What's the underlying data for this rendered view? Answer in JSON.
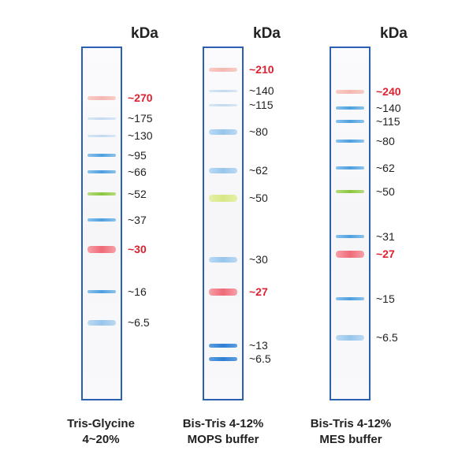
{
  "unit_label": "kDa",
  "colors": {
    "lane_border": "#2b5fb0",
    "red_marker": "#e0202e",
    "blue_band": "#4ca0e0",
    "green_band": "#8cc63f",
    "faint_band": "#c9dcf2"
  },
  "ladders": [
    {
      "caption_line1": "Tris-Glycine",
      "caption_line2": "4~20%",
      "markers": [
        {
          "text": "~270",
          "color": "red",
          "band": "faint_red"
        },
        {
          "text": "~175",
          "color": "normal",
          "band": "faint"
        },
        {
          "text": "~130",
          "color": "normal",
          "band": "faint"
        },
        {
          "text": "~95",
          "color": "normal",
          "band": "blue"
        },
        {
          "text": "~66",
          "color": "normal",
          "band": "blue"
        },
        {
          "text": "~52",
          "color": "normal",
          "band": "green"
        },
        {
          "text": "~37",
          "color": "normal",
          "band": "blue"
        },
        {
          "text": "~30",
          "color": "red",
          "band": "red"
        },
        {
          "text": "~16",
          "color": "normal",
          "band": "blue"
        },
        {
          "text": "~6.5",
          "color": "normal",
          "band": "blue_light"
        }
      ]
    },
    {
      "caption_line1": "Bis-Tris 4-12%",
      "caption_line2": "MOPS buffer",
      "markers": [
        {
          "text": "~210",
          "color": "red",
          "band": "faint_red"
        },
        {
          "text": "~140",
          "color": "normal",
          "band": "faint"
        },
        {
          "text": "~115",
          "color": "normal",
          "band": "faint"
        },
        {
          "text": "~80",
          "color": "normal",
          "band": "blue_light"
        },
        {
          "text": "~62",
          "color": "normal",
          "band": "blue_light"
        },
        {
          "text": "~50",
          "color": "normal",
          "band": "green_light"
        },
        {
          "text": "~30",
          "color": "normal",
          "band": "blue_light"
        },
        {
          "text": "~27",
          "color": "red",
          "band": "red"
        },
        {
          "text": "~13",
          "color": "normal",
          "band": "blue_dark"
        },
        {
          "text": "~6.5",
          "color": "normal",
          "band": "blue_dark"
        }
      ]
    },
    {
      "caption_line1": "Bis-Tris 4-12%",
      "caption_line2": "MES buffer",
      "markers": [
        {
          "text": "~240",
          "color": "red",
          "band": "faint_red"
        },
        {
          "text": "~140",
          "color": "normal",
          "band": "blue"
        },
        {
          "text": "~115",
          "color": "normal",
          "band": "blue"
        },
        {
          "text": "~80",
          "color": "normal",
          "band": "blue"
        },
        {
          "text": "~62",
          "color": "normal",
          "band": "blue"
        },
        {
          "text": "~50",
          "color": "normal",
          "band": "green"
        },
        {
          "text": "~31",
          "color": "normal",
          "band": "blue"
        },
        {
          "text": "~27",
          "color": "red",
          "band": "red"
        },
        {
          "text": "~15",
          "color": "normal",
          "band": "blue"
        },
        {
          "text": "~6.5",
          "color": "normal",
          "band": "blue_light"
        }
      ]
    }
  ]
}
